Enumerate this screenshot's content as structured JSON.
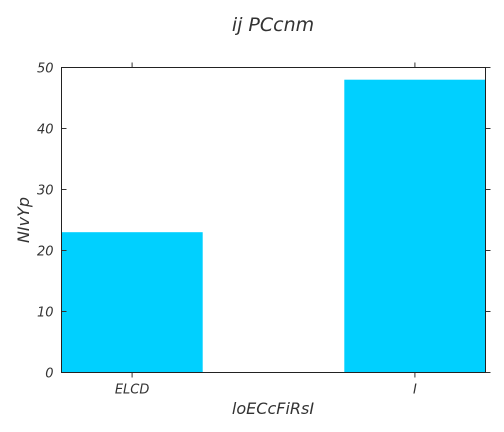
{
  "chart_data": {
    "type": "bar",
    "title": "ij PCcnm",
    "xlabel": "loECcFiRsI",
    "ylabel": "NIvYp",
    "categories": [
      "ELCD",
      "I"
    ],
    "values": [
      23,
      48
    ],
    "ylim": [
      0,
      50
    ],
    "yticks": [
      0,
      10,
      20,
      30,
      40,
      50
    ],
    "bar_color": "#00d0ff",
    "grid": false
  }
}
